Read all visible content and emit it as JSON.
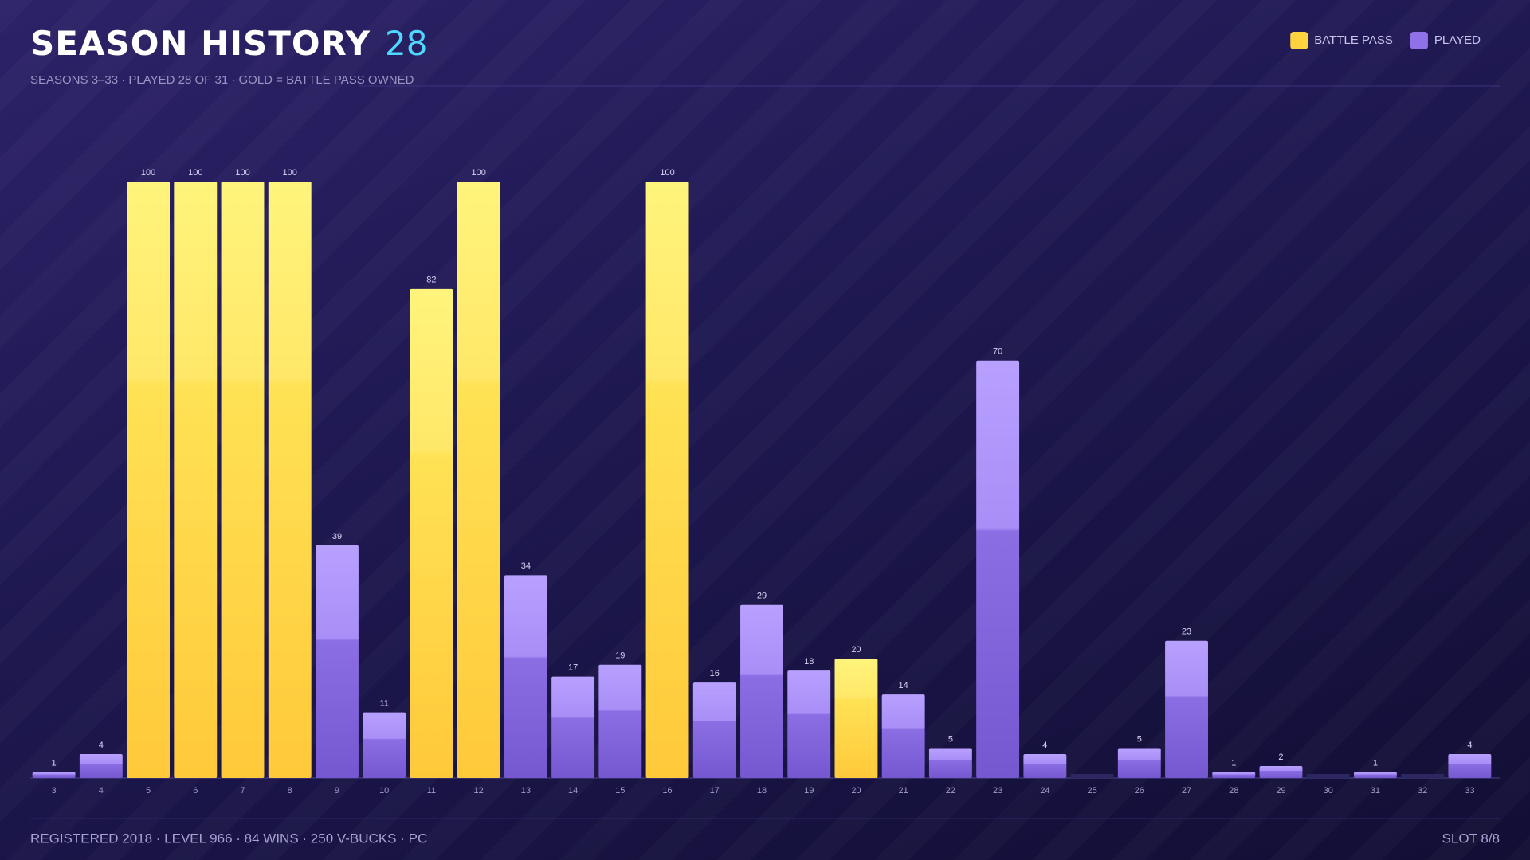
{
  "chart_data": {
    "type": "bar",
    "title": "SEASON HISTORY",
    "title_count": "28",
    "subtitle": "SEASONS 3–33 · PLAYED 28 OF 31 · GOLD = BATTLE PASS OWNED",
    "categories": [
      "3",
      "4",
      "5",
      "6",
      "7",
      "8",
      "9",
      "10",
      "11",
      "12",
      "13",
      "14",
      "15",
      "16",
      "17",
      "18",
      "19",
      "20",
      "21",
      "22",
      "23",
      "24",
      "25",
      "26",
      "27",
      "28",
      "29",
      "30",
      "31",
      "32",
      "33"
    ],
    "series": [
      {
        "name": "BATTLE PASS",
        "color": "#ffd23f",
        "values": [
          null,
          null,
          100,
          100,
          100,
          100,
          null,
          null,
          82,
          100,
          null,
          null,
          null,
          100,
          null,
          null,
          null,
          20,
          null,
          null,
          null,
          null,
          null,
          null,
          null,
          null,
          null,
          null,
          null,
          null,
          null
        ]
      },
      {
        "name": "PLAYED",
        "color": "#8f72e8",
        "values": [
          1,
          4,
          null,
          null,
          null,
          null,
          39,
          11,
          null,
          null,
          34,
          17,
          19,
          null,
          16,
          29,
          18,
          null,
          14,
          5,
          70,
          4,
          null,
          5,
          23,
          1,
          2,
          null,
          1,
          null,
          4
        ]
      }
    ],
    "ylim": [
      0,
      100
    ],
    "legend": "top-right",
    "footer": {
      "left": "REGISTERED 2018 · LEVEL 966 · 84 WINS · 250 V-BUCKS · PC",
      "right": "SLOT 8/8"
    }
  }
}
